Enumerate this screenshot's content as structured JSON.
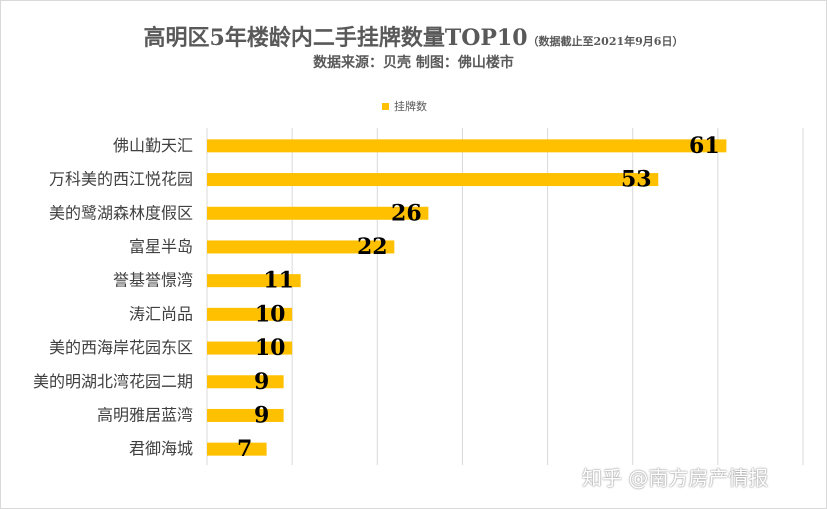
{
  "title": "高明区5年楼龄内二手挂牌数量TOP10",
  "title_note": "（数据截止至2021年9月6日）",
  "subtitle": "数据来源：贝壳 制图：佛山楼市",
  "watermark": "知乎 @南方房产情报",
  "colors": {
    "bar": "#FFC000",
    "grid": "#D9D9D9",
    "text": "#595959"
  },
  "chart_data": {
    "type": "bar",
    "orientation": "horizontal",
    "categories": [
      "佛山勤天汇",
      "万科美的西江悦花园",
      "美的鹭湖森林度假区",
      "富星半岛",
      "誉基誉憬湾",
      "涛汇尚品",
      "美的西海岸花园东区",
      "美的明湖北湾花园二期",
      "高明雅居蓝湾",
      "君御海城"
    ],
    "series": [
      {
        "name": "挂牌数",
        "values": [
          61,
          53,
          26,
          22,
          11,
          10,
          10,
          9,
          9,
          7
        ]
      }
    ],
    "xlim": [
      0,
      70
    ],
    "grid": "vertical",
    "legend": "top-center",
    "data_labels": true
  }
}
